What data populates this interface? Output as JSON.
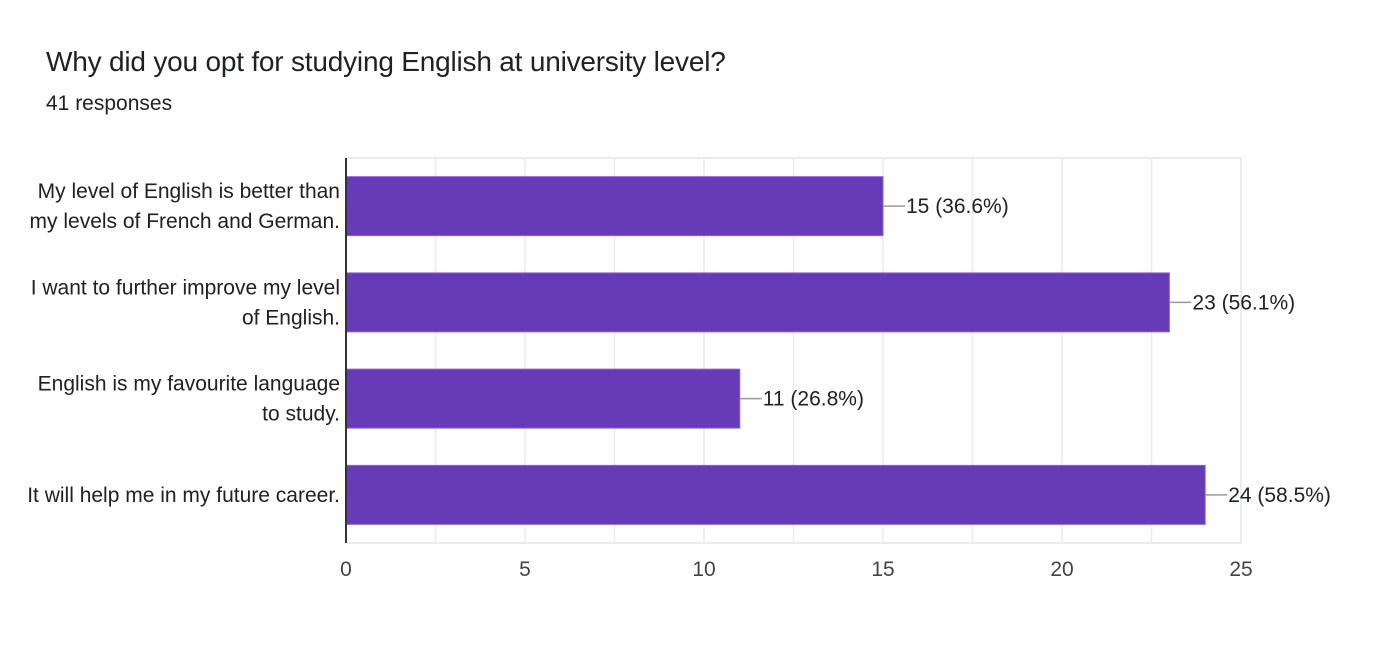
{
  "header": {
    "title": "Why did you opt for studying English at university level?",
    "responses": "41 responses"
  },
  "colors": {
    "bar": "#673ab7",
    "bar_edge": "#8e63d4",
    "axis": "#333333",
    "grid": "#ebebeb",
    "leader": "#999999",
    "text": "#202124"
  },
  "chart_data": {
    "type": "bar",
    "orientation": "horizontal",
    "title": "Why did you opt for studying English at university level?",
    "subtitle": "41 responses",
    "categories": [
      [
        "My level of English is better than",
        "my levels of French and German."
      ],
      [
        "I want to further improve my level",
        "of English."
      ],
      [
        "English is my favourite language",
        "to study."
      ],
      [
        "It will help me in my future career."
      ]
    ],
    "category_labels": [
      "My level of English is better than my levels of French and German.",
      "I want to further improve my level of English.",
      "English is my favourite language to study.",
      "It will help me in my future career."
    ],
    "values": [
      15,
      23,
      11,
      24
    ],
    "percentages": [
      "36.6%",
      "56.1%",
      "26.8%",
      "58.5%"
    ],
    "data_labels": [
      "15 (36.6%)",
      "23 (56.1%)",
      "11 (26.8%)",
      "24 (58.5%)"
    ],
    "xlabel": "",
    "ylabel": "",
    "xlim": [
      0,
      25
    ],
    "xticks": [
      "0",
      "5",
      "10",
      "15",
      "20",
      "25"
    ],
    "minor_grid_step": 2.5,
    "grid": true,
    "legend": "none"
  }
}
